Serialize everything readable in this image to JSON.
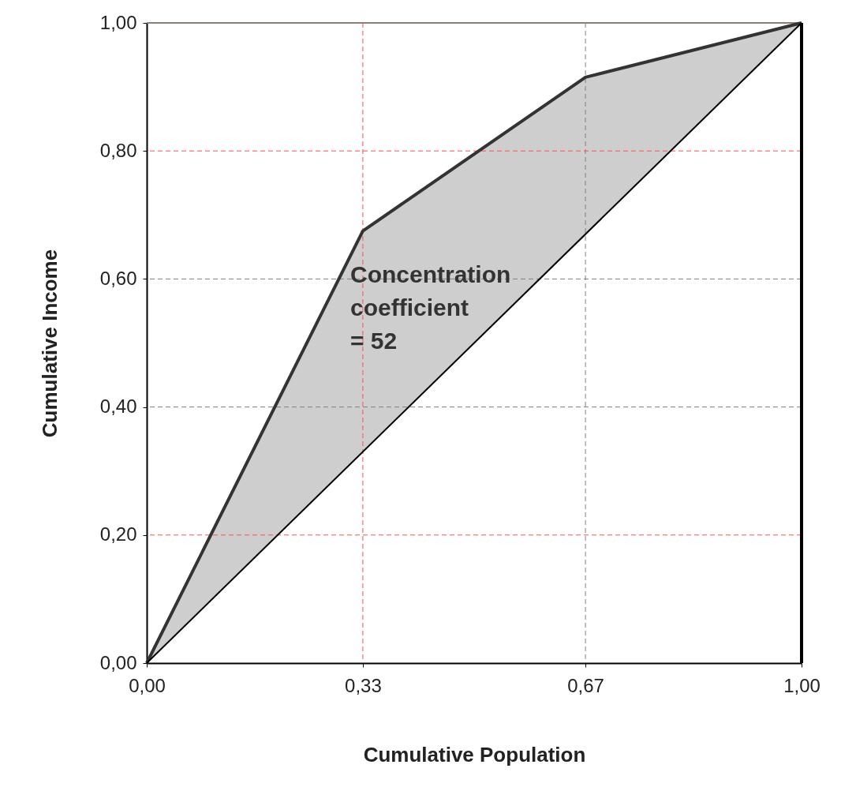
{
  "chart_data": {
    "type": "line",
    "xlabel": "Cumulative Population",
    "ylabel": "Cumulative Income",
    "xlim": [
      0,
      1
    ],
    "ylim": [
      0,
      1
    ],
    "xticks": [
      {
        "value": 0,
        "label": "0,00"
      },
      {
        "value": 0.33,
        "label": "0,33"
      },
      {
        "value": 0.67,
        "label": "0,67"
      },
      {
        "value": 1,
        "label": "1,00"
      }
    ],
    "yticks": [
      {
        "value": 0,
        "label": "0,00"
      },
      {
        "value": 0.2,
        "label": "0,20"
      },
      {
        "value": 0.4,
        "label": "0,40"
      },
      {
        "value": 0.6,
        "label": "0,60"
      },
      {
        "value": 0.8,
        "label": "0,80"
      },
      {
        "value": 1,
        "label": "1,00"
      }
    ],
    "series": [
      {
        "type": "line",
        "color": "#333333",
        "x": [
          0,
          0.33,
          0.67,
          1
        ],
        "values": [
          0,
          0.675,
          0.915,
          1
        ],
        "lower": [
          0,
          0.33,
          0.67,
          1
        ],
        "upper": [
          0,
          0.675,
          0.915,
          1
        ]
      },
      {
        "type": "line",
        "color": "#000000",
        "x": [
          0,
          1
        ],
        "values": [
          0,
          1
        ]
      }
    ],
    "ref_lines": [
      {
        "axis": "x",
        "value": 0.33,
        "color": "#ff5050",
        "line_style": "dashed"
      },
      {
        "axis": "x",
        "value": 0.67,
        "color": "#808080",
        "line_style": "dashed"
      },
      {
        "axis": "y",
        "value": 0.2,
        "color": "#ff5050",
        "line_style": "dashed"
      },
      {
        "axis": "y",
        "value": 0.4,
        "color": "#808080",
        "line_style": "dashed"
      },
      {
        "axis": "y",
        "value": 0.6,
        "color": "#808080",
        "line_style": "dashed"
      },
      {
        "axis": "y",
        "value": 0.8,
        "color": "#ff5050",
        "line_style": "dashed"
      },
      {
        "axis": "y",
        "value": 1,
        "color": "#8c7f7a",
        "line_style": "solid"
      },
      {
        "axis": "x",
        "value": 1,
        "color": "#000000",
        "line_style": "solid"
      }
    ],
    "annotations": [
      "Concentration\ncoefficient\n= 52"
    ],
    "grid": false
  }
}
